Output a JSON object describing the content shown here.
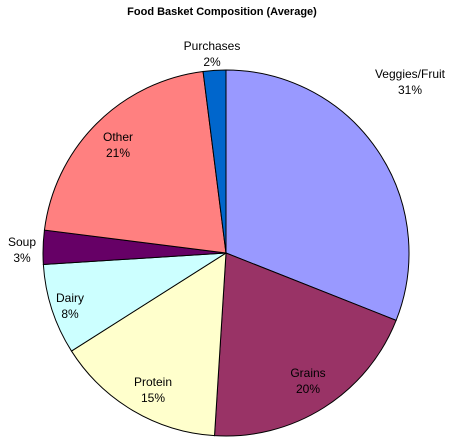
{
  "chart_data": {
    "type": "pie",
    "title": "Food Basket Composition (Average)",
    "categories": [
      "Veggies/Fruit",
      "Grains",
      "Protein",
      "Dairy",
      "Soup",
      "Other",
      "Purchases"
    ],
    "values": [
      31,
      20,
      15,
      8,
      3,
      21,
      2
    ],
    "value_labels": [
      "31%",
      "20%",
      "15%",
      "8%",
      "3%",
      "21%",
      "2%"
    ],
    "colors": [
      "#9999ff",
      "#993366",
      "#ffffcc",
      "#ccffff",
      "#660066",
      "#ff8080",
      "#0066cc"
    ]
  }
}
